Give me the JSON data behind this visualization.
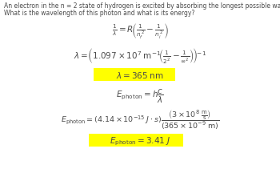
{
  "background_color": "#ffffff",
  "text_color": "#4a4a4a",
  "highlight_color": "#ffff00",
  "title_line1": "An electron in the n = 2 state of hydrogen is excited by absorbing the longest possible wavelength photon.",
  "title_line2": "What is the wavelength of this photon and what is its energy?",
  "title_fontsize": 5.5,
  "eq_fontsize": 7.5,
  "eq_fontsize_small": 6.8
}
